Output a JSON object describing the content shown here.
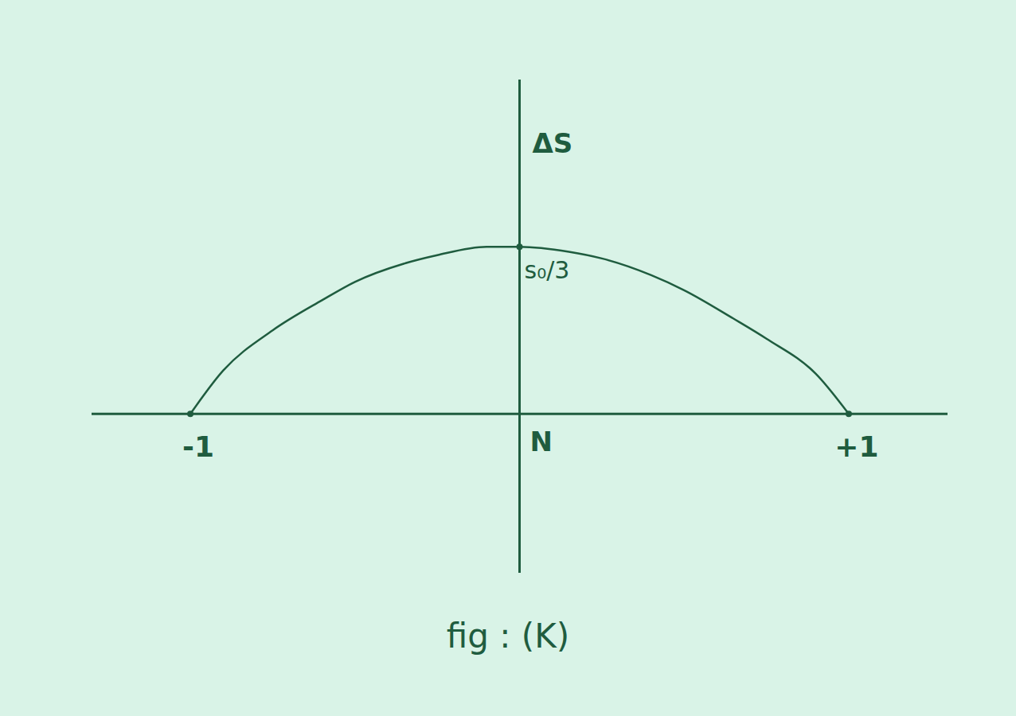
{
  "chart_data": {
    "type": "line",
    "title": "fig : (K)",
    "x_label": "N",
    "y_label": "ΔS",
    "x": [
      -1,
      -0.9,
      -0.75,
      -0.6,
      -0.5,
      -0.35,
      -0.25,
      -0.1,
      0,
      0.15,
      0.25,
      0.4,
      0.5,
      0.65,
      0.75,
      0.9,
      1
    ],
    "values": [
      0,
      0.26,
      0.5,
      0.68,
      0.79,
      0.9,
      0.95,
      1.0,
      1.0,
      0.97,
      0.93,
      0.83,
      0.74,
      0.57,
      0.45,
      0.24,
      0
    ],
    "color": "#1f5c3f",
    "xlim": [
      -1.3,
      1.3
    ],
    "xticks": [
      -1,
      {
        "value": 1,
        "label": "+1"
      }
    ],
    "ylim": [
      -0.95,
      2.0
    ],
    "tick_labels": "x",
    "grid": false,
    "annotations": [
      {
        "text": "s₀/3",
        "x": 0,
        "y": 1.0
      }
    ]
  }
}
